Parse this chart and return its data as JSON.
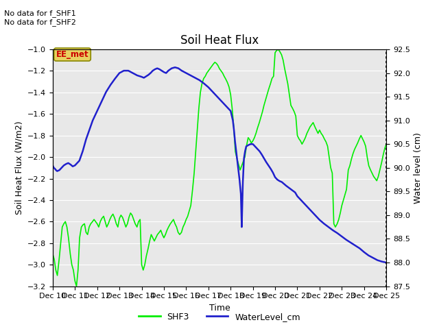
{
  "title": "Soil Heat Flux",
  "xlabel": "Time",
  "ylabel_left": "Soil Heat Flux (W/m2)",
  "ylabel_right": "Water level (cm)",
  "annotation_text": "No data for f_SHF1\nNo data for f_SHF2",
  "legend_label1": "SHF3",
  "legend_label2": "WaterLevel_cm",
  "box_label": "EE_met",
  "box_color": "#e8d060",
  "box_text_color": "#cc0000",
  "box_edge_color": "#888800",
  "ylim_left": [
    -3.2,
    -1.0
  ],
  "ylim_right": [
    87.5,
    92.5
  ],
  "bg_color": "#e8e8e8",
  "fig_bg": "#ffffff",
  "grid_color": "#ffffff",
  "title_fontsize": 12,
  "axis_fontsize": 9,
  "tick_fontsize": 8,
  "shf3_color": "#00ee00",
  "water_color": "#2020cc",
  "dates": [
    10,
    11,
    12,
    13,
    14,
    15,
    16,
    17,
    18,
    19,
    20,
    21,
    22,
    23,
    24,
    25
  ],
  "shf3_x": [
    10.0,
    10.07,
    10.14,
    10.21,
    10.29,
    10.36,
    10.43,
    10.5,
    10.57,
    10.64,
    10.71,
    10.79,
    10.86,
    10.93,
    11.0,
    11.07,
    11.14,
    11.21,
    11.29,
    11.36,
    11.43,
    11.5,
    11.57,
    11.64,
    11.71,
    11.79,
    11.86,
    11.93,
    12.0,
    12.07,
    12.14,
    12.21,
    12.29,
    12.36,
    12.43,
    12.5,
    12.57,
    12.64,
    12.71,
    12.79,
    12.86,
    12.93,
    13.0,
    13.07,
    13.14,
    13.21,
    13.29,
    13.36,
    13.43,
    13.5,
    13.57,
    13.64,
    13.71,
    13.79,
    13.86,
    13.93,
    14.0,
    14.07,
    14.14,
    14.21,
    14.29,
    14.36,
    14.43,
    14.5,
    14.57,
    14.64,
    14.71,
    14.79,
    14.86,
    14.93,
    15.0,
    15.07,
    15.14,
    15.21,
    15.29,
    15.36,
    15.43,
    15.5,
    15.57,
    15.64,
    15.71,
    15.79,
    15.86,
    15.93,
    16.0,
    16.07,
    16.14,
    16.21,
    16.29,
    16.36,
    16.43,
    16.5,
    16.57,
    16.64,
    16.71,
    16.79,
    16.86,
    16.93,
    17.0,
    17.07,
    17.14,
    17.21,
    17.29,
    17.36,
    17.43,
    17.5,
    17.57,
    17.64,
    17.71,
    17.79,
    17.86,
    17.93,
    18.0,
    18.07,
    18.14,
    18.21,
    18.29,
    18.36,
    18.43,
    18.5,
    18.57,
    18.64,
    18.71,
    18.79,
    18.86,
    18.93,
    19.0,
    19.07,
    19.14,
    19.21,
    19.29,
    19.36,
    19.43,
    19.5,
    19.57,
    19.64,
    19.71,
    19.79,
    19.86,
    19.93,
    20.0,
    20.07,
    20.14,
    20.21,
    20.29,
    20.36,
    20.43,
    20.5,
    20.57,
    20.64,
    20.71,
    20.79,
    20.86,
    20.93,
    21.0,
    21.07,
    21.14,
    21.21,
    21.29,
    21.36,
    21.43,
    21.5,
    21.57,
    21.64,
    21.71,
    21.79,
    21.86,
    21.93,
    22.0,
    22.07,
    22.14,
    22.21,
    22.29,
    22.36,
    22.43,
    22.5,
    22.57,
    22.64,
    22.71,
    22.79,
    22.86,
    22.93,
    23.0,
    23.07,
    23.14,
    23.21,
    23.29,
    23.36,
    23.43,
    23.5,
    23.57,
    23.64,
    23.71,
    23.79,
    23.86,
    23.93,
    24.0,
    24.07,
    24.14,
    24.21,
    24.29,
    24.36,
    24.43,
    24.5,
    24.57,
    24.64,
    24.71,
    24.79,
    24.86,
    24.93,
    25.0
  ],
  "shf3_y": [
    -2.9,
    -2.95,
    -3.05,
    -3.1,
    -2.95,
    -2.8,
    -2.65,
    -2.62,
    -2.6,
    -2.65,
    -2.75,
    -2.9,
    -3.0,
    -3.05,
    -3.15,
    -3.2,
    -3.05,
    -2.75,
    -2.65,
    -2.63,
    -2.62,
    -2.7,
    -2.72,
    -2.65,
    -2.62,
    -2.6,
    -2.58,
    -2.6,
    -2.62,
    -2.65,
    -2.6,
    -2.57,
    -2.55,
    -2.6,
    -2.65,
    -2.62,
    -2.58,
    -2.55,
    -2.53,
    -2.57,
    -2.62,
    -2.65,
    -2.57,
    -2.54,
    -2.56,
    -2.6,
    -2.65,
    -2.62,
    -2.56,
    -2.52,
    -2.54,
    -2.58,
    -2.62,
    -2.65,
    -2.6,
    -2.58,
    -3.0,
    -3.05,
    -3.0,
    -2.92,
    -2.85,
    -2.78,
    -2.72,
    -2.75,
    -2.78,
    -2.75,
    -2.72,
    -2.7,
    -2.68,
    -2.72,
    -2.75,
    -2.72,
    -2.68,
    -2.65,
    -2.62,
    -2.6,
    -2.58,
    -2.62,
    -2.65,
    -2.7,
    -2.72,
    -2.7,
    -2.65,
    -2.62,
    -2.58,
    -2.55,
    -2.5,
    -2.45,
    -2.3,
    -2.15,
    -1.95,
    -1.75,
    -1.55,
    -1.4,
    -1.32,
    -1.27,
    -1.25,
    -1.22,
    -1.2,
    -1.18,
    -1.16,
    -1.14,
    -1.12,
    -1.13,
    -1.15,
    -1.18,
    -1.2,
    -1.22,
    -1.25,
    -1.28,
    -1.31,
    -1.35,
    -1.42,
    -1.55,
    -1.72,
    -1.95,
    -2.02,
    -2.07,
    -2.12,
    -2.08,
    -2.04,
    -2.0,
    -1.9,
    -1.82,
    -1.84,
    -1.87,
    -1.85,
    -1.82,
    -1.78,
    -1.73,
    -1.68,
    -1.63,
    -1.58,
    -1.52,
    -1.47,
    -1.42,
    -1.37,
    -1.32,
    -1.27,
    -1.25,
    -1.03,
    -1.01,
    -1.0,
    -1.02,
    -1.05,
    -1.1,
    -1.18,
    -1.25,
    -1.32,
    -1.42,
    -1.52,
    -1.55,
    -1.58,
    -1.62,
    -1.8,
    -1.83,
    -1.85,
    -1.88,
    -1.85,
    -1.82,
    -1.78,
    -1.75,
    -1.72,
    -1.7,
    -1.68,
    -1.72,
    -1.75,
    -1.78,
    -1.75,
    -1.78,
    -1.8,
    -1.83,
    -1.86,
    -1.9,
    -2.0,
    -2.1,
    -2.15,
    -2.62,
    -2.65,
    -2.62,
    -2.58,
    -2.52,
    -2.45,
    -2.4,
    -2.35,
    -2.3,
    -2.12,
    -2.08,
    -2.02,
    -1.97,
    -1.93,
    -1.9,
    -1.87,
    -1.83,
    -1.8,
    -1.83,
    -1.86,
    -1.9,
    -2.0,
    -2.08,
    -2.12,
    -2.15,
    -2.18,
    -2.2,
    -2.22,
    -2.18,
    -2.12,
    -2.05,
    -1.98,
    -1.92,
    -1.88
  ],
  "water_x": [
    10.0,
    10.05,
    10.1,
    10.15,
    10.2,
    10.3,
    10.4,
    10.5,
    10.6,
    10.7,
    10.8,
    10.9,
    11.0,
    11.1,
    11.2,
    11.35,
    11.5,
    11.65,
    11.8,
    12.0,
    12.2,
    12.4,
    12.6,
    12.8,
    13.0,
    13.2,
    13.4,
    13.6,
    13.8,
    14.0,
    14.1,
    14.2,
    14.3,
    14.4,
    14.5,
    14.6,
    14.7,
    14.8,
    14.9,
    15.0,
    15.1,
    15.2,
    15.35,
    15.5,
    15.65,
    15.8,
    16.0,
    16.2,
    16.4,
    16.6,
    16.8,
    17.0,
    17.2,
    17.4,
    17.6,
    17.8,
    18.0,
    18.05,
    18.1,
    18.15,
    18.2,
    18.25,
    18.3,
    18.35,
    18.4,
    18.43,
    18.46,
    18.5,
    18.55,
    18.6,
    18.65,
    18.7,
    18.8,
    18.9,
    19.0,
    19.1,
    19.2,
    19.3,
    19.4,
    19.5,
    19.6,
    19.7,
    19.8,
    19.9,
    20.0,
    20.1,
    20.2,
    20.3,
    20.5,
    20.7,
    20.9,
    21.0,
    21.1,
    21.2,
    21.3,
    21.4,
    21.5,
    21.6,
    21.7,
    21.8,
    21.9,
    22.0,
    22.2,
    22.4,
    22.6,
    22.8,
    23.0,
    23.2,
    23.4,
    23.6,
    23.8,
    24.0,
    24.2,
    24.4,
    24.6,
    24.8,
    25.0
  ],
  "water_y": [
    90.05,
    90.0,
    89.98,
    89.95,
    89.93,
    89.95,
    90.0,
    90.05,
    90.08,
    90.1,
    90.07,
    90.03,
    90.05,
    90.1,
    90.15,
    90.35,
    90.6,
    90.8,
    91.0,
    91.2,
    91.4,
    91.6,
    91.75,
    91.88,
    92.0,
    92.05,
    92.05,
    92.0,
    91.95,
    91.92,
    91.9,
    91.93,
    91.96,
    92.0,
    92.05,
    92.08,
    92.1,
    92.08,
    92.05,
    92.02,
    92.0,
    92.05,
    92.1,
    92.12,
    92.1,
    92.05,
    92.0,
    91.95,
    91.9,
    91.85,
    91.78,
    91.7,
    91.6,
    91.5,
    91.4,
    91.3,
    91.2,
    91.1,
    91.0,
    90.8,
    90.55,
    90.35,
    90.15,
    89.95,
    89.75,
    89.6,
    89.45,
    88.75,
    89.7,
    90.2,
    90.35,
    90.45,
    90.48,
    90.5,
    90.5,
    90.45,
    90.4,
    90.35,
    90.28,
    90.2,
    90.12,
    90.05,
    89.98,
    89.9,
    89.8,
    89.75,
    89.72,
    89.7,
    89.62,
    89.55,
    89.48,
    89.4,
    89.35,
    89.3,
    89.25,
    89.2,
    89.15,
    89.1,
    89.05,
    89.0,
    88.95,
    88.9,
    88.82,
    88.75,
    88.68,
    88.62,
    88.55,
    88.48,
    88.42,
    88.36,
    88.3,
    88.22,
    88.15,
    88.1,
    88.05,
    88.02,
    88.0
  ]
}
